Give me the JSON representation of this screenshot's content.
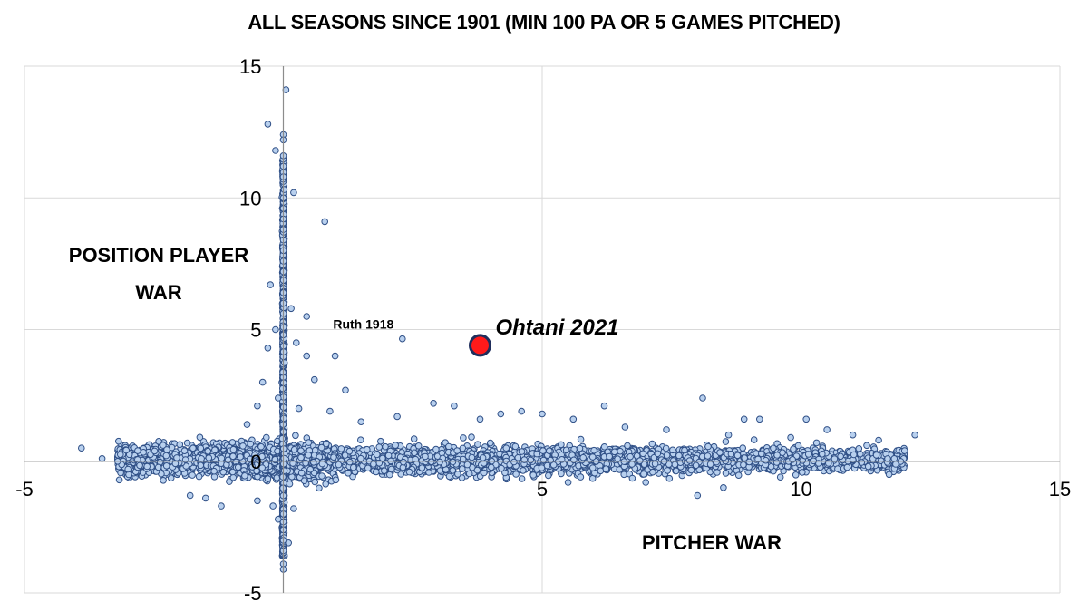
{
  "chart_data": {
    "type": "scatter",
    "title": "ALL SEASONS SINCE 1901 (MIN 100 PA OR 5 GAMES PITCHED)",
    "xlabel": "PITCHER WAR",
    "ylabel_lines": [
      "POSITION PLAYER",
      "WAR"
    ],
    "xlim": [
      -5,
      15
    ],
    "ylim": [
      -5,
      15
    ],
    "x_ticks": [
      "-5",
      "0",
      "5",
      "10",
      "15"
    ],
    "y_ticks": [
      "-5",
      "0",
      "5",
      "10",
      "15"
    ],
    "grid": true,
    "legend": "none",
    "colors": {
      "point_fill": "#b8d0ee",
      "point_stroke": "#2f4f86",
      "highlight_fill": "#ff1a1a",
      "highlight_stroke": "#1f2e5c",
      "grid": "#d9d9d9"
    },
    "series": [
      {
        "points": [
          [
            0.05,
            14.1
          ],
          [
            -0.3,
            12.8
          ],
          [
            0.0,
            12.4
          ],
          [
            0.0,
            12.2
          ],
          [
            -0.15,
            11.8
          ],
          [
            0.0,
            11.6
          ],
          [
            0.0,
            11.2
          ],
          [
            0.0,
            10.8
          ],
          [
            0.2,
            10.2
          ],
          [
            0.0,
            10.0
          ],
          [
            0.0,
            9.6
          ],
          [
            0.0,
            9.2
          ],
          [
            0.0,
            8.8
          ],
          [
            0.8,
            9.1
          ],
          [
            0.0,
            8.4
          ],
          [
            0.0,
            8.0
          ],
          [
            0.0,
            7.6
          ],
          [
            0.0,
            7.2
          ],
          [
            -0.25,
            6.7
          ],
          [
            0.0,
            6.4
          ],
          [
            0.0,
            6.0
          ],
          [
            0.45,
            5.5
          ],
          [
            0.15,
            5.8
          ],
          [
            -0.15,
            5.0
          ],
          [
            0.0,
            4.8
          ],
          [
            0.25,
            4.5
          ],
          [
            -0.3,
            4.3
          ],
          [
            0.45,
            4.0
          ],
          [
            1.0,
            4.0
          ],
          [
            0.6,
            3.1
          ],
          [
            -0.4,
            3.0
          ],
          [
            1.2,
            2.7
          ],
          [
            -0.1,
            2.4
          ],
          [
            -0.5,
            2.1
          ],
          [
            0.3,
            2.0
          ],
          [
            0.9,
            1.9
          ],
          [
            -0.7,
            1.4
          ],
          [
            2.3,
            4.65
          ],
          [
            2.9,
            2.2
          ],
          [
            4.2,
            1.8
          ],
          [
            3.3,
            2.1
          ],
          [
            5.0,
            1.8
          ],
          [
            6.2,
            2.1
          ],
          [
            8.1,
            2.4
          ],
          [
            8.9,
            1.6
          ],
          [
            9.2,
            1.6
          ],
          [
            10.1,
            1.6
          ],
          [
            10.5,
            1.2
          ],
          [
            11.0,
            1.0
          ],
          [
            11.5,
            0.8
          ],
          [
            12.2,
            1.0
          ],
          [
            12.0,
            0.4
          ],
          [
            11.8,
            0.1
          ],
          [
            11.3,
            -0.2
          ],
          [
            11.7,
            -0.5
          ],
          [
            9.6,
            -0.6
          ],
          [
            8.0,
            -1.3
          ],
          [
            8.5,
            -1.0
          ],
          [
            7.0,
            -0.8
          ],
          [
            5.5,
            -0.8
          ],
          [
            -3.9,
            0.5
          ],
          [
            -3.5,
            0.1
          ],
          [
            -3.2,
            0.0
          ],
          [
            -3.0,
            -0.3
          ],
          [
            -1.8,
            -1.3
          ],
          [
            -1.2,
            -1.7
          ],
          [
            -1.5,
            -1.4
          ],
          [
            -0.5,
            -1.5
          ],
          [
            0.0,
            -2.0
          ],
          [
            0.0,
            -2.6
          ],
          [
            0.0,
            -3.0
          ],
          [
            0.0,
            -3.4
          ],
          [
            0.0,
            -3.9
          ],
          [
            0.0,
            -4.1
          ],
          [
            -0.2,
            -1.7
          ],
          [
            0.2,
            -1.8
          ],
          [
            -0.1,
            -2.2
          ],
          [
            0.1,
            -3.1
          ],
          [
            1.5,
            1.5
          ],
          [
            2.2,
            1.7
          ],
          [
            3.8,
            1.6
          ],
          [
            4.6,
            1.9
          ],
          [
            5.6,
            1.6
          ],
          [
            6.6,
            1.3
          ],
          [
            7.4,
            1.2
          ],
          [
            8.6,
            1.0
          ],
          [
            9.8,
            0.9
          ],
          [
            10.3,
            0.7
          ]
        ]
      },
      {
        "name": "Ohtani 2021",
        "points": [
          [
            3.8,
            4.4
          ]
        ]
      }
    ],
    "annotations": [
      {
        "text": "Ruth 1918",
        "x": 2.3,
        "y": 4.65
      },
      {
        "text": "Ohtani 2021",
        "x": 3.8,
        "y": 4.4
      }
    ]
  }
}
